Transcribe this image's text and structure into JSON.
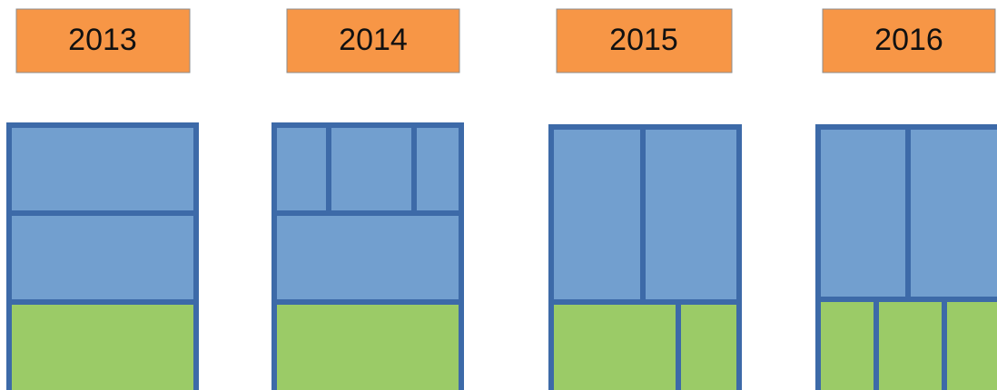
{
  "labels": [
    "2013",
    "2014",
    "2015",
    "2016"
  ]
}
